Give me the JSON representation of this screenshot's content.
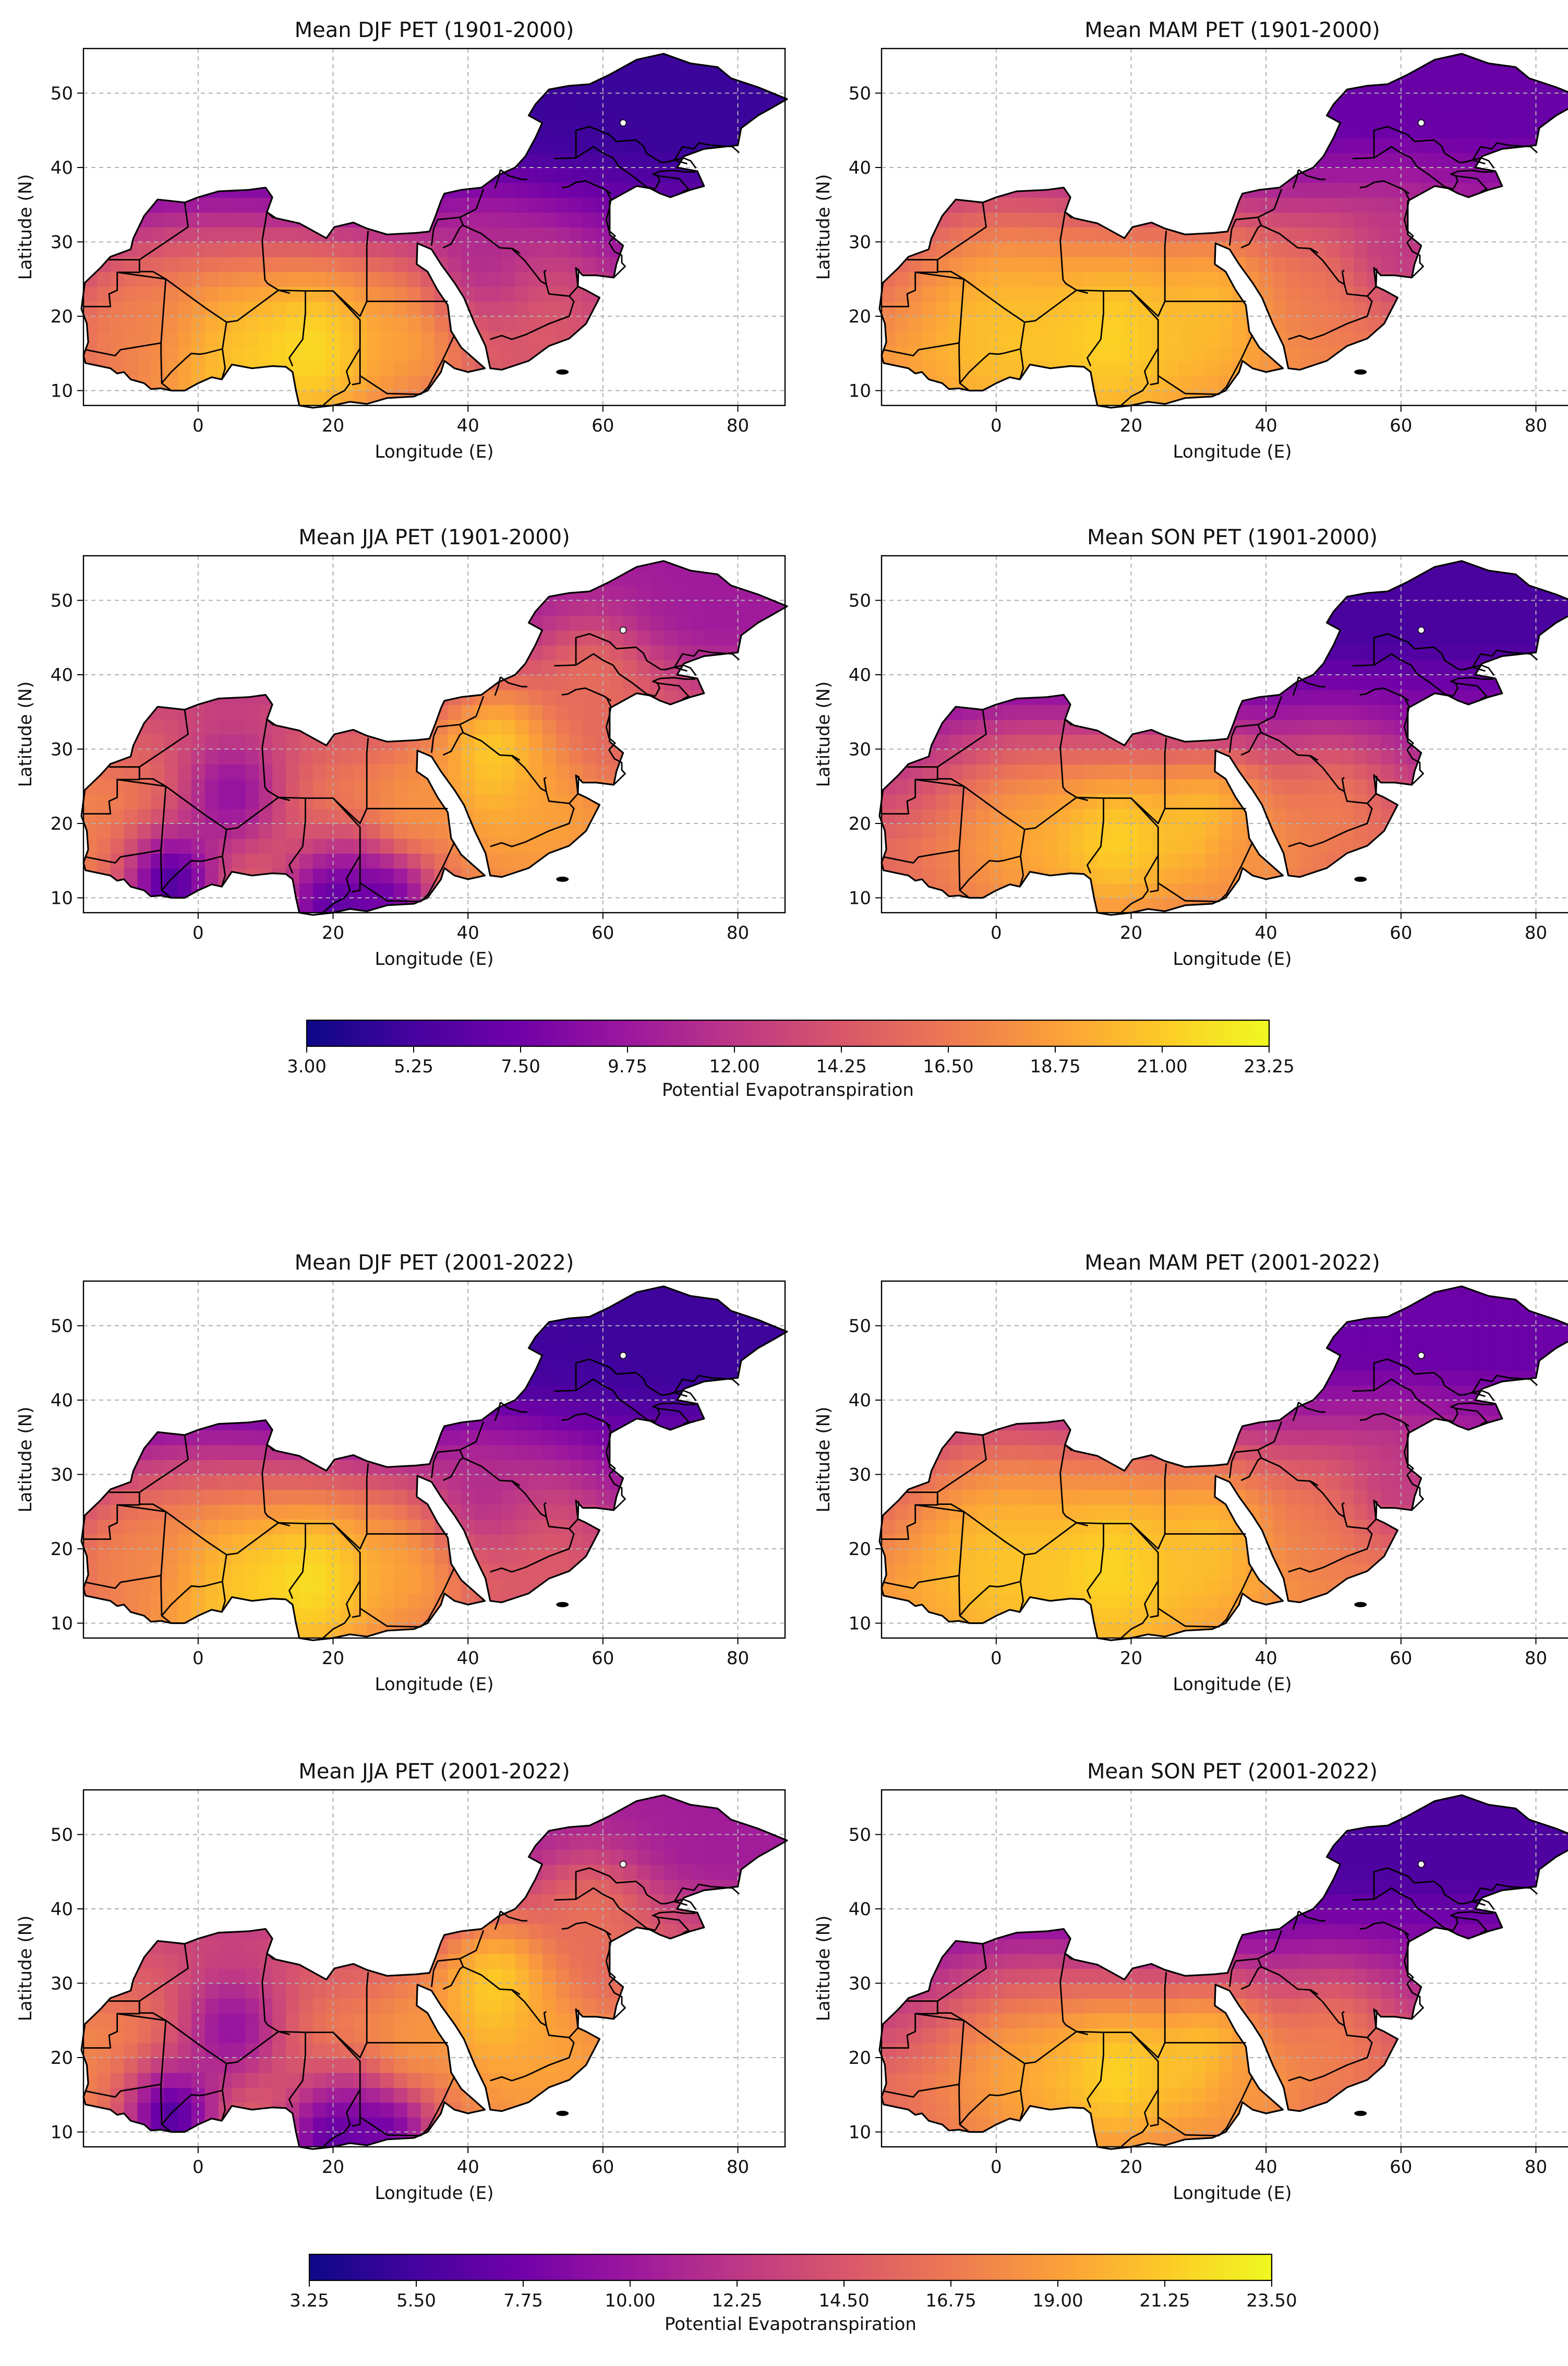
{
  "figure": {
    "colors": {
      "plasma_stops": [
        "#0d0887",
        "#46039f",
        "#7201a8",
        "#9c179e",
        "#bd3786",
        "#d8576b",
        "#ed7953",
        "#fb9f3a",
        "#fdca26",
        "#f0f921"
      ],
      "ocean": "#ffffff",
      "border": "#000000",
      "grid": "#b0b0b0"
    },
    "maps": [
      {
        "id": "djf_1901_2000",
        "title": "Mean DJF PET (1901-2000)",
        "season": "DJF",
        "period": "1901-2000"
      },
      {
        "id": "mam_1901_2000",
        "title": "Mean MAM PET (1901-2000)",
        "season": "MAM",
        "period": "1901-2000"
      },
      {
        "id": "jja_1901_2000",
        "title": "Mean JJA PET (1901-2000)",
        "season": "JJA",
        "period": "1901-2000"
      },
      {
        "id": "son_1901_2000",
        "title": "Mean SON PET (1901-2000)",
        "season": "SON",
        "period": "1901-2000"
      },
      {
        "id": "djf_2001_2022",
        "title": "Mean DJF PET (2001-2022)",
        "season": "DJF",
        "period": "2001-2022"
      },
      {
        "id": "mam_2001_2022",
        "title": "Mean MAM PET (2001-2022)",
        "season": "MAM",
        "period": "2001-2022"
      },
      {
        "id": "jja_2001_2022",
        "title": "Mean JJA PET (2001-2022)",
        "season": "JJA",
        "period": "2001-2022"
      },
      {
        "id": "son_2001_2022",
        "title": "Mean SON PET (2001-2022)",
        "season": "SON",
        "period": "2001-2022"
      }
    ],
    "axes": {
      "xlabel": "Longitude (E)",
      "ylabel": "Latitude (N)",
      "xlim": [
        -17,
        87
      ],
      "ylim": [
        8,
        56
      ],
      "xticks": [
        0,
        20,
        40,
        60,
        80
      ],
      "yticks": [
        10,
        20,
        30,
        40,
        50
      ],
      "grid": "dashed"
    },
    "colorbars": [
      {
        "id": "cbar_1901_2000",
        "label": "Potential Evapotranspiration",
        "range": [
          3.0,
          23.25
        ],
        "ticks": [
          "3.00",
          "5.25",
          "7.50",
          "9.75",
          "12.00",
          "14.25",
          "16.50",
          "18.75",
          "21.00",
          "23.25"
        ]
      },
      {
        "id": "cbar_2001_2022",
        "label": "Potential Evapotranspiration",
        "range": [
          3.25,
          23.5
        ],
        "ticks": [
          "3.25",
          "5.50",
          "7.75",
          "10.00",
          "12.25",
          "14.50",
          "16.75",
          "19.00",
          "21.25",
          "23.50"
        ]
      }
    ]
  }
}
